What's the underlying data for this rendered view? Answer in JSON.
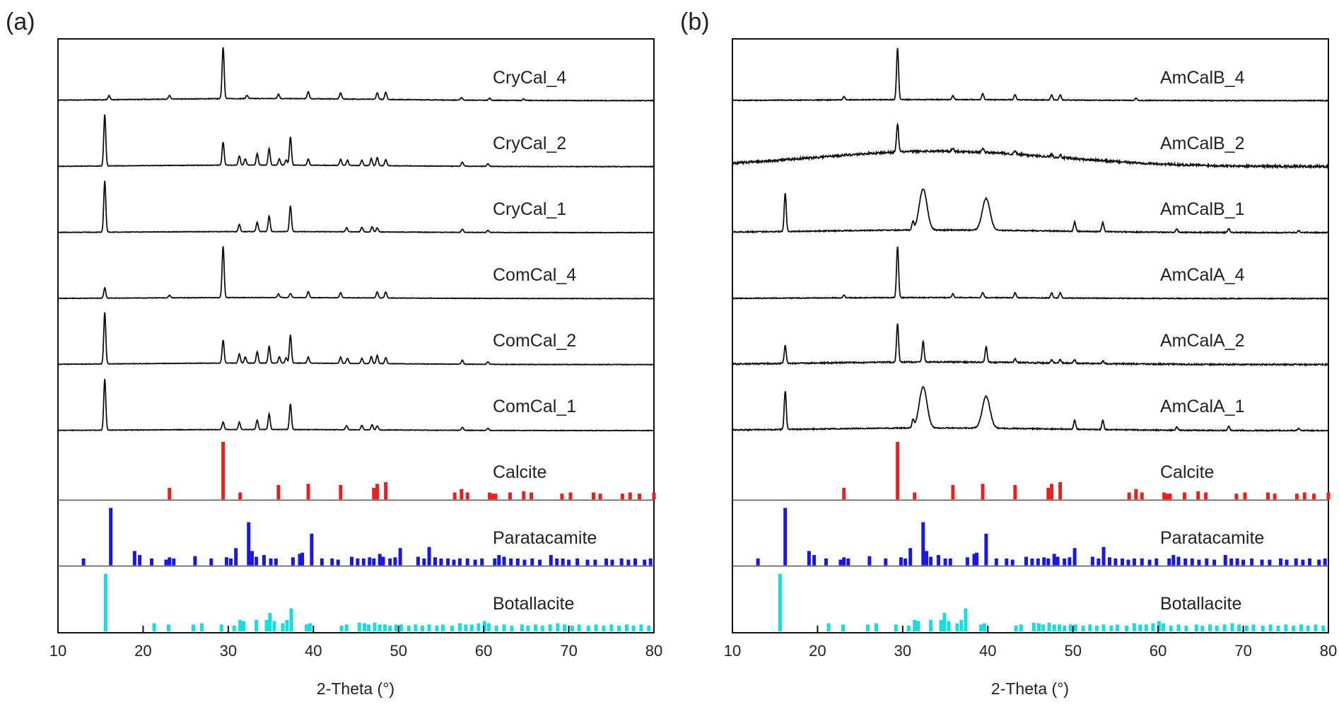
{
  "chart_data": {
    "type": "line",
    "xlim": [
      10,
      80
    ],
    "ticks": [
      10,
      20,
      30,
      40,
      50,
      60,
      70,
      80
    ],
    "xlabel": "2-Theta (°)",
    "panels": [
      {
        "id": "a",
        "label": "(a)",
        "series": [
          {
            "name": "CryCal_4",
            "profile": "cryc4"
          },
          {
            "name": "CryCal_2",
            "profile": "mix2"
          },
          {
            "name": "CryCal_1",
            "profile": "mix1"
          },
          {
            "name": "ComCal_4",
            "profile": "comc4"
          },
          {
            "name": "ComCal_2",
            "profile": "mix2"
          },
          {
            "name": "ComCal_1",
            "profile": "mix1b"
          }
        ],
        "references": [
          "Calcite",
          "Paratacamite",
          "Botallacite"
        ]
      },
      {
        "id": "b",
        "label": "(b)",
        "series": [
          {
            "name": "AmCalB_4",
            "profile": "ab4"
          },
          {
            "name": "AmCalB_2",
            "profile": "ab2"
          },
          {
            "name": "AmCalB_1",
            "profile": "ab1"
          },
          {
            "name": "AmCalA_4",
            "profile": "aa4"
          },
          {
            "name": "AmCalA_2",
            "profile": "aa2"
          },
          {
            "name": "AmCalA_1",
            "profile": "ab1"
          }
        ],
        "references": [
          "Calcite",
          "Paratacamite",
          "Botallacite"
        ]
      }
    ],
    "profiles": {
      "cryc4": {
        "peaks": [
          [
            29.4,
            1.0
          ],
          [
            16.0,
            0.08
          ],
          [
            23.1,
            0.07
          ],
          [
            32.2,
            0.06
          ],
          [
            35.9,
            0.09
          ],
          [
            39.4,
            0.14
          ],
          [
            43.2,
            0.12
          ],
          [
            47.5,
            0.13
          ],
          [
            48.5,
            0.14
          ],
          [
            57.4,
            0.05
          ],
          [
            60.7,
            0.04
          ],
          [
            64.7,
            0.03
          ]
        ],
        "hump": 0.04,
        "noise": 0.012
      },
      "mix2": {
        "peaks": [
          [
            15.5,
            1.0
          ],
          [
            29.4,
            0.45
          ],
          [
            31.3,
            0.18
          ],
          [
            32.0,
            0.12
          ],
          [
            33.4,
            0.22
          ],
          [
            34.8,
            0.32
          ],
          [
            36.0,
            0.12
          ],
          [
            36.8,
            0.1
          ],
          [
            37.3,
            0.55
          ],
          [
            39.4,
            0.12
          ],
          [
            43.2,
            0.12
          ],
          [
            44.0,
            0.1
          ],
          [
            45.7,
            0.1
          ],
          [
            46.8,
            0.14
          ],
          [
            47.5,
            0.16
          ],
          [
            48.5,
            0.12
          ],
          [
            57.5,
            0.08
          ],
          [
            60.5,
            0.05
          ]
        ],
        "hump": 0.03,
        "noise": 0.01
      },
      "mix1": {
        "peaks": [
          [
            15.5,
            1.0
          ],
          [
            31.3,
            0.14
          ],
          [
            33.4,
            0.18
          ],
          [
            34.8,
            0.3
          ],
          [
            37.3,
            0.5
          ],
          [
            43.9,
            0.08
          ],
          [
            45.7,
            0.09
          ],
          [
            46.9,
            0.1
          ],
          [
            47.5,
            0.08
          ],
          [
            57.5,
            0.06
          ],
          [
            60.5,
            0.04
          ]
        ],
        "hump": 0.02,
        "noise": 0.01
      },
      "comc4": {
        "peaks": [
          [
            29.4,
            1.0
          ],
          [
            15.5,
            0.2
          ],
          [
            23.1,
            0.05
          ],
          [
            35.9,
            0.07
          ],
          [
            37.3,
            0.08
          ],
          [
            39.4,
            0.12
          ],
          [
            43.2,
            0.1
          ],
          [
            47.5,
            0.12
          ],
          [
            48.5,
            0.12
          ]
        ],
        "hump": 0.02,
        "noise": 0.01
      },
      "mix1b": {
        "peaks": [
          [
            15.5,
            1.0
          ],
          [
            29.4,
            0.15
          ],
          [
            31.3,
            0.14
          ],
          [
            33.4,
            0.18
          ],
          [
            34.8,
            0.3
          ],
          [
            37.3,
            0.5
          ],
          [
            43.9,
            0.08
          ],
          [
            45.7,
            0.09
          ],
          [
            46.9,
            0.1
          ],
          [
            47.5,
            0.08
          ],
          [
            57.5,
            0.06
          ],
          [
            60.5,
            0.04
          ]
        ],
        "hump": 0.02,
        "noise": 0.01
      },
      "ab4": {
        "peaks": [
          [
            29.4,
            1.0
          ],
          [
            23.1,
            0.06
          ],
          [
            35.9,
            0.08
          ],
          [
            39.4,
            0.12
          ],
          [
            43.2,
            0.1
          ],
          [
            47.5,
            0.1
          ],
          [
            48.5,
            0.1
          ],
          [
            57.4,
            0.04
          ]
        ],
        "hump": 0.02,
        "noise": 0.015
      },
      "ab2": {
        "peaks": [
          [
            29.4,
            0.55
          ],
          [
            35.9,
            0.06
          ],
          [
            39.4,
            0.08
          ],
          [
            43.2,
            0.06
          ],
          [
            47.5,
            0.05
          ],
          [
            48.5,
            0.05
          ]
        ],
        "hump": 0.3,
        "noise": 0.04
      },
      "ab1": {
        "peaks": [
          [
            16.2,
            0.75
          ],
          [
            32.4,
            0.8
          ],
          [
            31.2,
            0.15
          ],
          [
            39.8,
            0.62
          ],
          [
            50.2,
            0.18
          ],
          [
            53.5,
            0.18
          ],
          [
            62.2,
            0.06
          ],
          [
            68.3,
            0.08
          ],
          [
            76.5,
            0.04
          ]
        ],
        "hump": 0.05,
        "noise": 0.02
      },
      "aa4": {
        "peaks": [
          [
            29.4,
            1.0
          ],
          [
            23.1,
            0.05
          ],
          [
            35.9,
            0.07
          ],
          [
            39.4,
            0.1
          ],
          [
            43.2,
            0.1
          ],
          [
            47.5,
            0.1
          ],
          [
            48.5,
            0.1
          ]
        ],
        "hump": 0.02,
        "noise": 0.015
      },
      "aa2": {
        "peaks": [
          [
            29.4,
            0.75
          ],
          [
            16.2,
            0.35
          ],
          [
            32.4,
            0.4
          ],
          [
            39.8,
            0.3
          ],
          [
            43.2,
            0.07
          ],
          [
            47.5,
            0.06
          ],
          [
            48.5,
            0.06
          ],
          [
            50.2,
            0.07
          ],
          [
            53.5,
            0.05
          ]
        ],
        "hump": 0.05,
        "noise": 0.025
      }
    },
    "reference_sticks": {
      "Calcite": {
        "color": "#e8201f",
        "sticks": [
          [
            23.1,
            0.2
          ],
          [
            29.4,
            1.0
          ],
          [
            31.4,
            0.12
          ],
          [
            35.9,
            0.25
          ],
          [
            39.4,
            0.27
          ],
          [
            43.2,
            0.25
          ],
          [
            47.1,
            0.2
          ],
          [
            47.5,
            0.27
          ],
          [
            48.5,
            0.3
          ],
          [
            56.6,
            0.12
          ],
          [
            57.4,
            0.18
          ],
          [
            58.1,
            0.12
          ],
          [
            60.7,
            0.12
          ],
          [
            61.0,
            0.1
          ],
          [
            61.4,
            0.1
          ],
          [
            63.1,
            0.12
          ],
          [
            64.7,
            0.14
          ],
          [
            65.6,
            0.12
          ],
          [
            69.2,
            0.1
          ],
          [
            70.2,
            0.12
          ],
          [
            72.9,
            0.12
          ],
          [
            73.7,
            0.1
          ],
          [
            76.3,
            0.1
          ],
          [
            77.2,
            0.12
          ],
          [
            78.3,
            0.1
          ],
          [
            80.0,
            0.12
          ]
        ]
      },
      "Paratacamite": {
        "color": "#1818e0",
        "sticks": [
          [
            13.0,
            0.12
          ],
          [
            16.2,
            1.0
          ],
          [
            19.0,
            0.25
          ],
          [
            19.6,
            0.18
          ],
          [
            21.0,
            0.12
          ],
          [
            22.7,
            0.1
          ],
          [
            23.1,
            0.14
          ],
          [
            23.6,
            0.12
          ],
          [
            26.1,
            0.16
          ],
          [
            28.0,
            0.12
          ],
          [
            29.8,
            0.14
          ],
          [
            30.3,
            0.12
          ],
          [
            30.9,
            0.3
          ],
          [
            32.4,
            0.75
          ],
          [
            32.8,
            0.25
          ],
          [
            33.3,
            0.15
          ],
          [
            34.2,
            0.18
          ],
          [
            35.0,
            0.12
          ],
          [
            35.6,
            0.12
          ],
          [
            37.6,
            0.14
          ],
          [
            38.4,
            0.2
          ],
          [
            38.7,
            0.22
          ],
          [
            39.8,
            0.55
          ],
          [
            41.0,
            0.12
          ],
          [
            42.2,
            0.12
          ],
          [
            42.9,
            0.1
          ],
          [
            44.5,
            0.15
          ],
          [
            45.2,
            0.12
          ],
          [
            45.9,
            0.12
          ],
          [
            46.6,
            0.14
          ],
          [
            47.1,
            0.12
          ],
          [
            47.8,
            0.2
          ],
          [
            48.2,
            0.15
          ],
          [
            49.0,
            0.12
          ],
          [
            49.6,
            0.14
          ],
          [
            50.2,
            0.3
          ],
          [
            52.3,
            0.15
          ],
          [
            53.0,
            0.12
          ],
          [
            53.6,
            0.32
          ],
          [
            54.3,
            0.14
          ],
          [
            55.0,
            0.12
          ],
          [
            55.8,
            0.12
          ],
          [
            56.5,
            0.1
          ],
          [
            57.2,
            0.12
          ],
          [
            58.1,
            0.12
          ],
          [
            59.0,
            0.1
          ],
          [
            59.8,
            0.12
          ],
          [
            61.3,
            0.12
          ],
          [
            61.8,
            0.18
          ],
          [
            62.4,
            0.15
          ],
          [
            63.2,
            0.12
          ],
          [
            64.0,
            0.12
          ],
          [
            64.8,
            0.1
          ],
          [
            65.7,
            0.12
          ],
          [
            66.6,
            0.1
          ],
          [
            67.9,
            0.18
          ],
          [
            68.6,
            0.12
          ],
          [
            69.3,
            0.12
          ],
          [
            70.0,
            0.1
          ],
          [
            71.0,
            0.12
          ],
          [
            72.2,
            0.1
          ],
          [
            73.1,
            0.1
          ],
          [
            74.4,
            0.12
          ],
          [
            75.1,
            0.1
          ],
          [
            76.2,
            0.12
          ],
          [
            77.0,
            0.1
          ],
          [
            77.8,
            0.12
          ],
          [
            78.9,
            0.1
          ],
          [
            79.6,
            0.12
          ]
        ]
      },
      "Botallacite": {
        "color": "#14dede",
        "sticks": [
          [
            15.6,
            1.0
          ],
          [
            21.3,
            0.14
          ],
          [
            23.0,
            0.12
          ],
          [
            25.9,
            0.12
          ],
          [
            26.9,
            0.14
          ],
          [
            29.2,
            0.12
          ],
          [
            30.7,
            0.1
          ],
          [
            31.4,
            0.2
          ],
          [
            31.8,
            0.18
          ],
          [
            33.3,
            0.2
          ],
          [
            34.5,
            0.2
          ],
          [
            34.9,
            0.32
          ],
          [
            35.4,
            0.18
          ],
          [
            36.4,
            0.14
          ],
          [
            36.9,
            0.2
          ],
          [
            37.4,
            0.4
          ],
          [
            39.2,
            0.12
          ],
          [
            39.6,
            0.14
          ],
          [
            43.3,
            0.1
          ],
          [
            43.9,
            0.12
          ],
          [
            45.4,
            0.15
          ],
          [
            46.0,
            0.14
          ],
          [
            46.5,
            0.12
          ],
          [
            47.2,
            0.15
          ],
          [
            47.8,
            0.12
          ],
          [
            48.4,
            0.12
          ],
          [
            49.0,
            0.1
          ],
          [
            49.7,
            0.12
          ],
          [
            50.3,
            0.12
          ],
          [
            51.2,
            0.1
          ],
          [
            52.0,
            0.12
          ],
          [
            52.8,
            0.1
          ],
          [
            53.6,
            0.12
          ],
          [
            54.5,
            0.1
          ],
          [
            55.2,
            0.12
          ],
          [
            56.3,
            0.1
          ],
          [
            57.2,
            0.14
          ],
          [
            57.9,
            0.12
          ],
          [
            58.6,
            0.12
          ],
          [
            59.4,
            0.14
          ],
          [
            60.1,
            0.18
          ],
          [
            60.6,
            0.14
          ],
          [
            61.5,
            0.1
          ],
          [
            62.4,
            0.12
          ],
          [
            63.3,
            0.1
          ],
          [
            64.5,
            0.12
          ],
          [
            65.2,
            0.1
          ],
          [
            66.1,
            0.12
          ],
          [
            66.9,
            0.1
          ],
          [
            67.8,
            0.12
          ],
          [
            68.7,
            0.14
          ],
          [
            69.5,
            0.12
          ],
          [
            70.4,
            0.1
          ],
          [
            71.2,
            0.12
          ],
          [
            72.3,
            0.1
          ],
          [
            73.2,
            0.12
          ],
          [
            74.1,
            0.1
          ],
          [
            75.0,
            0.12
          ],
          [
            75.9,
            0.1
          ],
          [
            76.8,
            0.12
          ],
          [
            77.6,
            0.1
          ],
          [
            78.5,
            0.12
          ],
          [
            79.4,
            0.1
          ]
        ]
      }
    }
  }
}
